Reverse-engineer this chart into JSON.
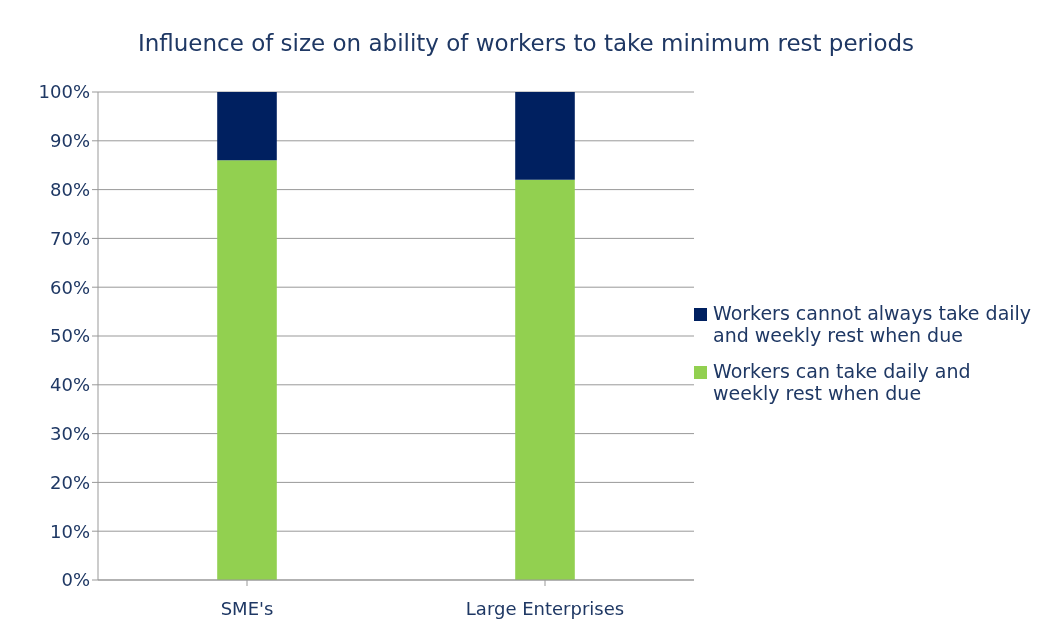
{
  "chart_data": {
    "type": "bar",
    "title": "Influence of size on ability of workers to take minimum rest periods",
    "categories": [
      "SME's",
      "Large Enterprises"
    ],
    "stacked": true,
    "series": [
      {
        "name": "Workers can take daily and weekly rest when due",
        "color": "#92d050",
        "values": [
          86,
          82
        ]
      },
      {
        "name": "Workers cannot always take daily and weekly rest when due",
        "color": "#002060",
        "values": [
          14,
          18
        ]
      }
    ],
    "ylim": [
      0,
      100
    ],
    "yticks": [
      {
        "value": 0,
        "label": "0%"
      },
      {
        "value": 10,
        "label": "10%"
      },
      {
        "value": 20,
        "label": "20%"
      },
      {
        "value": 30,
        "label": "30%"
      },
      {
        "value": 40,
        "label": "40%"
      },
      {
        "value": 50,
        "label": "50%"
      },
      {
        "value": 60,
        "label": "60%"
      },
      {
        "value": 70,
        "label": "70%"
      },
      {
        "value": 80,
        "label": "80%"
      },
      {
        "value": 90,
        "label": "90%"
      },
      {
        "value": 100,
        "label": "100%"
      }
    ],
    "grid": "y",
    "legend": "right"
  }
}
